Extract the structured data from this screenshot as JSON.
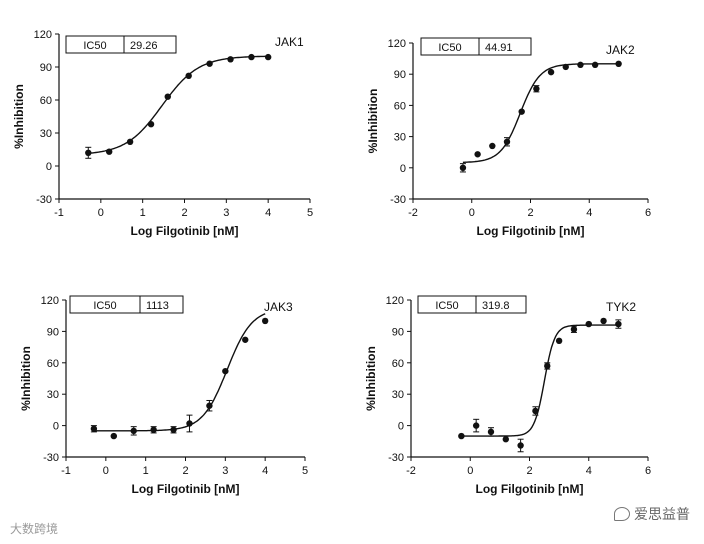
{
  "chart_data": [
    {
      "id": "jak1",
      "type": "scatter",
      "subtitle": "JAK1",
      "ic50_label": "IC50",
      "ic50_value": "29.26",
      "xlabel": "Log Filgotinib [nM]",
      "ylabel": "%Inhibition",
      "xlim": [
        -1,
        5
      ],
      "ylim": [
        -30,
        120
      ],
      "xticks": [
        "-1",
        "0",
        "1",
        "2",
        "3",
        "4",
        "5"
      ],
      "yticks": [
        "-30",
        "0",
        "30",
        "60",
        "90",
        "120"
      ],
      "ytick_values": [
        -30,
        0,
        30,
        60,
        90,
        120
      ],
      "xtick_values": [
        -1,
        0,
        1,
        2,
        3,
        4,
        5
      ],
      "fit": {
        "bottom": 10,
        "top": 100,
        "logIC50": 1.466,
        "hill": 1.0
      },
      "points": [
        {
          "x": -0.3,
          "y": 12,
          "err": 5
        },
        {
          "x": 0.2,
          "y": 13,
          "err": 1
        },
        {
          "x": 0.7,
          "y": 22,
          "err": 1
        },
        {
          "x": 1.2,
          "y": 38,
          "err": 1
        },
        {
          "x": 1.6,
          "y": 63,
          "err": 1
        },
        {
          "x": 2.1,
          "y": 82,
          "err": 1
        },
        {
          "x": 2.6,
          "y": 93,
          "err": 1
        },
        {
          "x": 3.1,
          "y": 97,
          "err": 1
        },
        {
          "x": 3.6,
          "y": 99,
          "err": 1
        },
        {
          "x": 4.0,
          "y": 99,
          "err": 1
        }
      ]
    },
    {
      "id": "jak2",
      "type": "scatter",
      "subtitle": "JAK2",
      "ic50_label": "IC50",
      "ic50_value": "44.91",
      "xlabel": "Log Filgotinib [nM]",
      "ylabel": "%Inhibition",
      "xlim": [
        -2,
        6
      ],
      "ylim": [
        -30,
        120
      ],
      "xticks": [
        "-2",
        "0",
        "2",
        "4",
        "6"
      ],
      "yticks": [
        "-30",
        "0",
        "30",
        "60",
        "90",
        "120"
      ],
      "ytick_values": [
        -30,
        0,
        30,
        60,
        90,
        120
      ],
      "xtick_values": [
        -2,
        0,
        2,
        4,
        6
      ],
      "fit": {
        "bottom": 5,
        "top": 100,
        "logIC50": 1.652,
        "hill": 1.3
      },
      "points": [
        {
          "x": -0.3,
          "y": 0,
          "err": 4
        },
        {
          "x": 0.2,
          "y": 13,
          "err": 1
        },
        {
          "x": 0.7,
          "y": 21,
          "err": 1
        },
        {
          "x": 1.2,
          "y": 25,
          "err": 4
        },
        {
          "x": 1.7,
          "y": 54,
          "err": 1
        },
        {
          "x": 2.2,
          "y": 76,
          "err": 3
        },
        {
          "x": 2.7,
          "y": 92,
          "err": 1
        },
        {
          "x": 3.2,
          "y": 97,
          "err": 1
        },
        {
          "x": 3.7,
          "y": 99,
          "err": 1
        },
        {
          "x": 4.2,
          "y": 99,
          "err": 1
        },
        {
          "x": 5.0,
          "y": 100,
          "err": 1
        }
      ]
    },
    {
      "id": "jak3",
      "type": "scatter",
      "subtitle": "JAK3",
      "ic50_label": "IC50",
      "ic50_value": "1113",
      "xlabel": "Log Filgotinib [nM]",
      "ylabel": "%Inhibition",
      "xlim": [
        -1,
        5
      ],
      "ylim": [
        -30,
        120
      ],
      "xticks": [
        "-1",
        "0",
        "1",
        "2",
        "3",
        "4",
        "5"
      ],
      "yticks": [
        "-30",
        "0",
        "30",
        "60",
        "90",
        "120"
      ],
      "ytick_values": [
        -30,
        0,
        30,
        60,
        90,
        120
      ],
      "xtick_values": [
        -1,
        0,
        1,
        2,
        3,
        4,
        5
      ],
      "fit": {
        "bottom": -5,
        "top": 112,
        "logIC50": 3.046,
        "hill": 1.4
      },
      "points": [
        {
          "x": -0.3,
          "y": -3,
          "err": 3
        },
        {
          "x": 0.2,
          "y": -10,
          "err": 1
        },
        {
          "x": 0.7,
          "y": -5,
          "err": 4
        },
        {
          "x": 1.2,
          "y": -4,
          "err": 3
        },
        {
          "x": 1.7,
          "y": -4,
          "err": 3
        },
        {
          "x": 2.1,
          "y": 2,
          "err": 8
        },
        {
          "x": 2.6,
          "y": 19,
          "err": 5
        },
        {
          "x": 3.0,
          "y": 52,
          "err": 1
        },
        {
          "x": 3.5,
          "y": 82,
          "err": 1
        },
        {
          "x": 4.0,
          "y": 100,
          "err": 1
        }
      ]
    },
    {
      "id": "tyk2",
      "type": "scatter",
      "subtitle": "TYK2",
      "ic50_label": "IC50",
      "ic50_value": "319.8",
      "xlabel": "Log Filgotinib [nM]",
      "ylabel": "%Inhibition",
      "xlim": [
        -2,
        6
      ],
      "ylim": [
        -30,
        120
      ],
      "xticks": [
        "-2",
        "0",
        "2",
        "4",
        "6"
      ],
      "yticks": [
        "-30",
        "0",
        "30",
        "60",
        "90",
        "120"
      ],
      "ytick_values": [
        -30,
        0,
        30,
        60,
        90,
        120
      ],
      "xtick_values": [
        -2,
        0,
        2,
        4,
        6
      ],
      "fit": {
        "bottom": -10,
        "top": 96,
        "logIC50": 2.505,
        "hill": 2.5
      },
      "points": [
        {
          "x": -0.3,
          "y": -10,
          "err": 1
        },
        {
          "x": 0.2,
          "y": 0,
          "err": 6
        },
        {
          "x": 0.7,
          "y": -6,
          "err": 4
        },
        {
          "x": 1.2,
          "y": -13,
          "err": 1
        },
        {
          "x": 1.7,
          "y": -19,
          "err": 6
        },
        {
          "x": 2.2,
          "y": 14,
          "err": 4
        },
        {
          "x": 2.6,
          "y": 57,
          "err": 3
        },
        {
          "x": 3.0,
          "y": 81,
          "err": 1
        },
        {
          "x": 3.5,
          "y": 92,
          "err": 3
        },
        {
          "x": 4.0,
          "y": 97,
          "err": 1
        },
        {
          "x": 4.5,
          "y": 100,
          "err": 1
        },
        {
          "x": 5.0,
          "y": 97,
          "err": 4
        }
      ]
    }
  ],
  "watermarks": {
    "left": "大数跨境",
    "right": "爱思益普"
  }
}
